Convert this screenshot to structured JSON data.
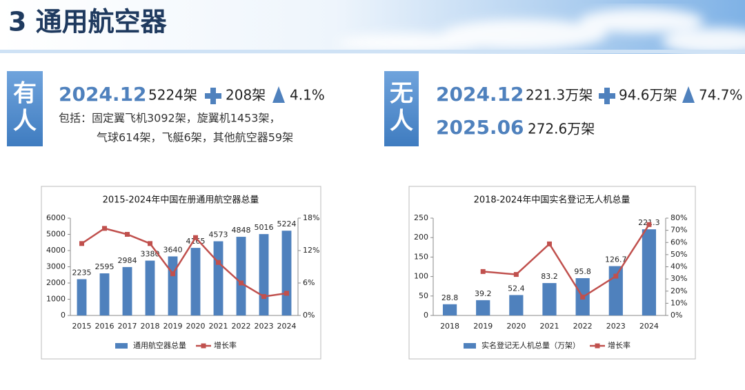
{
  "header": {
    "title": "3 通用航空器"
  },
  "manned": {
    "tag": [
      "有",
      "人"
    ],
    "date": "2024.12",
    "total": "5224架",
    "increase": "208架",
    "growth": "4.1%",
    "details": [
      "包括：固定翼飞机3092架，旋翼机1453架，",
      "气球614架，飞艇6架，其他航空器59架"
    ]
  },
  "unmanned": {
    "tag": [
      "无",
      "人"
    ],
    "date": "2024.12",
    "total": "221.3万架",
    "increase": "94.6万架",
    "growth": "74.7%",
    "forecast_date": "2025.06",
    "forecast_total": "272.6万架"
  },
  "chart_data": [
    {
      "type": "bar",
      "title": "2015-2024年中国在册通用航空器总量",
      "categories": [
        "2015",
        "2016",
        "2017",
        "2018",
        "2019",
        "2020",
        "2021",
        "2022",
        "2023",
        "2024"
      ],
      "series": [
        {
          "name": "通用航空器总量",
          "kind": "bar",
          "color": "#4f81bd",
          "values": [
            2235,
            2595,
            2984,
            3380,
            3640,
            4165,
            4573,
            4848,
            5016,
            5224
          ]
        },
        {
          "name": "增长率",
          "kind": "line",
          "axis": "y2",
          "color": "#c0504d",
          "values": [
            13.3,
            16.1,
            15.0,
            13.3,
            7.7,
            14.4,
            9.8,
            6.0,
            3.5,
            4.1
          ]
        }
      ],
      "ylim": [
        0,
        6000
      ],
      "yticks": [
        0,
        1000,
        2000,
        3000,
        4000,
        5000,
        6000
      ],
      "y2lim": [
        0,
        18
      ],
      "y2ticks": [
        {
          "value": 0,
          "label": "0%"
        },
        {
          "value": 6,
          "label": "6%"
        },
        {
          "value": 12,
          "label": "12%"
        },
        {
          "value": 18,
          "label": "18%"
        }
      ],
      "grid": false,
      "legend": "bottom"
    },
    {
      "type": "bar",
      "title": "2018-2024年中国实名登记无人机总量",
      "categories": [
        "2018",
        "2019",
        "2020",
        "2021",
        "2022",
        "2023",
        "2024"
      ],
      "series": [
        {
          "name": "实名登记无人机总量（万架）",
          "kind": "bar",
          "color": "#4f81bd",
          "values": [
            28.8,
            39.2,
            52.4,
            83.2,
            95.8,
            126.7,
            221.3
          ]
        },
        {
          "name": "增长率",
          "kind": "line",
          "axis": "y2",
          "color": "#c0504d",
          "values": [
            null,
            36.1,
            33.7,
            58.8,
            15.1,
            32.3,
            74.7
          ]
        }
      ],
      "ylim": [
        0,
        250
      ],
      "yticks": [
        0,
        50,
        100,
        150,
        200,
        250
      ],
      "y2lim": [
        0,
        80
      ],
      "y2ticks": [
        {
          "value": 0,
          "label": "0%"
        },
        {
          "value": 10,
          "label": "10%"
        },
        {
          "value": 20,
          "label": "20%"
        },
        {
          "value": 30,
          "label": "30%"
        },
        {
          "value": 40,
          "label": "40%"
        },
        {
          "value": 50,
          "label": "50%"
        },
        {
          "value": 60,
          "label": "60%"
        },
        {
          "value": 70,
          "label": "70%"
        },
        {
          "value": 80,
          "label": "80%"
        }
      ],
      "grid": false,
      "legend": "bottom"
    }
  ]
}
